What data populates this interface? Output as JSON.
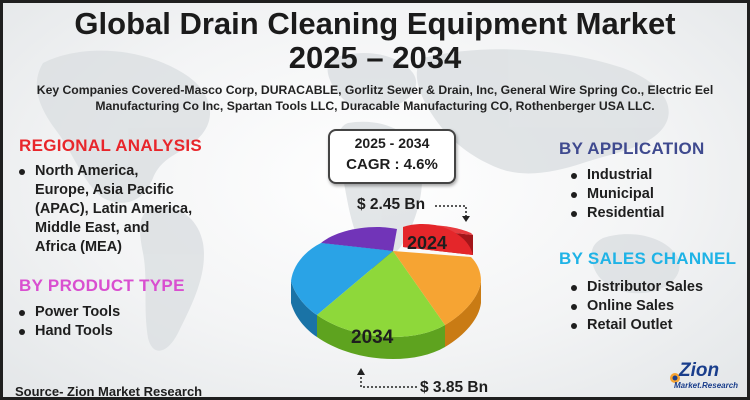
{
  "title": {
    "line1": "Global Drain Cleaning Equipment Market",
    "line2": "2025 – 2034"
  },
  "companies": {
    "line1": "Key Companies Covered-Masco Corp, DURACABLE, Gorlitz Sewer & Drain, Inc, General Wire Spring Co., Electric Eel",
    "line2": "Manufacturing Co Inc, Spartan Tools LLC, Duracable Manufacturing CO, Rothenberger USA LLC."
  },
  "regional": {
    "heading": "REGIONAL ANALYSIS",
    "items": [
      "North America,",
      "Europe, Asia Pacific",
      "(APAC), Latin America,",
      "Middle East, and",
      "Africa (MEA)"
    ]
  },
  "product_type": {
    "heading": "BY PRODUCT TYPE",
    "items": [
      "Power Tools",
      "Hand Tools"
    ]
  },
  "application": {
    "heading": "BY APPLICATION",
    "items": [
      "Industrial",
      "Municipal",
      "Residential"
    ]
  },
  "sales_channel": {
    "heading": "BY SALES CHANNEL",
    "items": [
      "Distributor Sales",
      "Online Sales",
      "Retail Outlet"
    ]
  },
  "cagr": {
    "years": "2025 - 2034",
    "value": "CAGR : 4.6%"
  },
  "market_values": {
    "value_2024": "$ 2.45 Bn",
    "value_2034": "$ 3.85 Bn",
    "label_2024": "2024",
    "label_2034": "2034"
  },
  "source": "Source- Zion Market Research",
  "logo": {
    "name": "Zion",
    "tagline": "Market.Research"
  },
  "colors": {
    "title": "#1b1b1b",
    "regional_heading": "#e8262b",
    "product_heading": "#d94fd0",
    "application_heading": "#3f4a8f",
    "sales_heading": "#1fb3e6",
    "slice_red": "#e4262a",
    "slice_orange": "#f6a433",
    "slice_green": "#8ed83a",
    "slice_blue": "#2aa3e6",
    "slice_purple": "#7134b8"
  }
}
